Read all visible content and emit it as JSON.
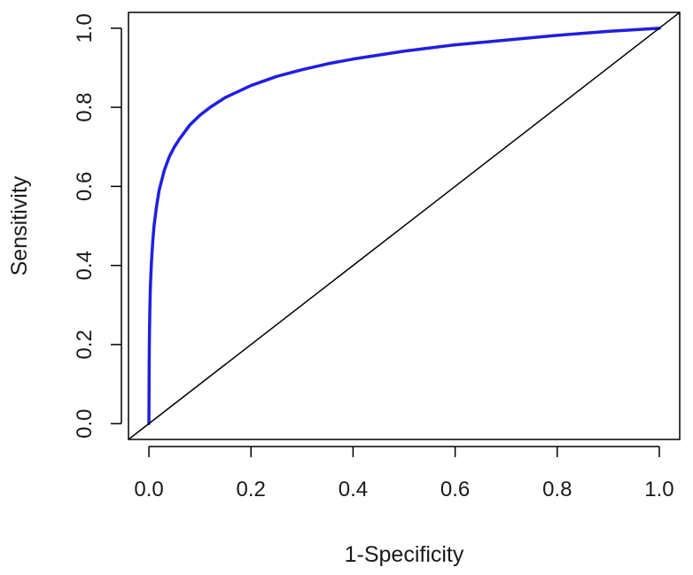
{
  "chart_data": {
    "type": "line",
    "title": "",
    "xlabel": "1-Specificity",
    "ylabel": "Sensitivity",
    "xlim": [
      -0.04,
      1.04
    ],
    "ylim": [
      -0.04,
      1.04
    ],
    "x_ticks": [
      0.0,
      0.2,
      0.4,
      0.6,
      0.8,
      1.0
    ],
    "x_tick_labels": [
      "0.0",
      "0.2",
      "0.4",
      "0.6",
      "0.8",
      "1.0"
    ],
    "y_ticks": [
      0.0,
      0.2,
      0.4,
      0.6,
      0.8,
      1.0
    ],
    "y_tick_labels": [
      "0.0",
      "0.2",
      "0.4",
      "0.6",
      "0.8",
      "1.0"
    ],
    "grid": false,
    "legend": "none",
    "series": [
      {
        "color": "#1f1fe0",
        "x": [
          0.0,
          0.0005,
          0.001,
          0.002,
          0.003,
          0.005,
          0.0075,
          0.01,
          0.015,
          0.02,
          0.03,
          0.04,
          0.05,
          0.06,
          0.08,
          0.1,
          0.12,
          0.15,
          0.2,
          0.25,
          0.3,
          0.35,
          0.4,
          0.5,
          0.6,
          0.7,
          0.8,
          0.9,
          1.0
        ],
        "y": [
          0.0,
          0.15,
          0.22,
          0.3,
          0.35,
          0.41,
          0.46,
          0.5,
          0.55,
          0.59,
          0.64,
          0.675,
          0.7,
          0.72,
          0.755,
          0.78,
          0.8,
          0.825,
          0.855,
          0.878,
          0.895,
          0.91,
          0.922,
          0.942,
          0.958,
          0.97,
          0.982,
          0.992,
          1.0
        ]
      },
      {
        "color": "#000000",
        "x": [
          -0.04,
          1.04
        ],
        "y": [
          -0.04,
          1.04
        ]
      }
    ]
  }
}
